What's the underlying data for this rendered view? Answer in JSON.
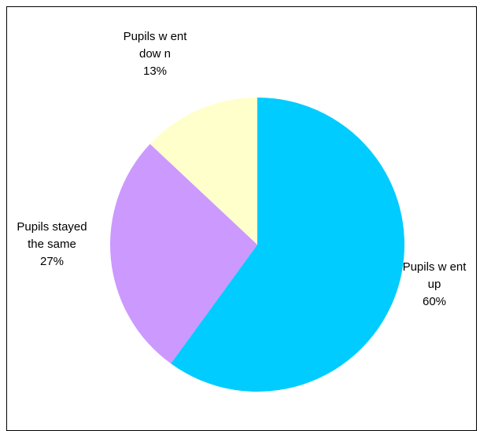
{
  "chart_data": {
    "type": "pie",
    "slices": [
      {
        "label_lines": [
          "Pupils w ent",
          "up"
        ],
        "value": 60,
        "value_label": "60%",
        "color": "#00CCFF"
      },
      {
        "label_lines": [
          "Pupils stayed",
          "the same"
        ],
        "value": 27,
        "value_label": "27%",
        "color": "#CC99FF"
      },
      {
        "label_lines": [
          "Pupils w ent",
          "dow n"
        ],
        "value": 13,
        "value_label": "13%",
        "color": "#FFFFCC"
      }
    ],
    "start_angle_deg": 0,
    "direction": "clockwise",
    "legend": "none",
    "border_color": "#000000"
  }
}
